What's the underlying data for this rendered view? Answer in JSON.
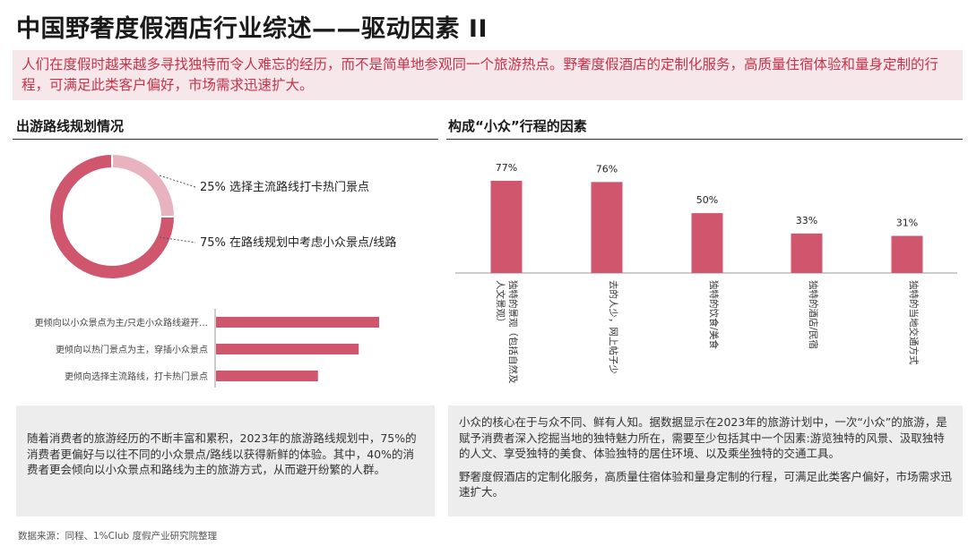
{
  "title": "中国野奢度假酒店行业综述——驱动因素 II",
  "banner": "人们在度假时越来越多寻找独特而令人难忘的经历，而不是简单地参观同一个旅游热点。野奢度假酒店的定制化服务，高质量住宿体验和量身定制的行程，可满足此类客户偏好，市场需求迅速扩大。",
  "left_section": {
    "title": "出游路线规划情况"
  },
  "right_section": {
    "title": "构成“小众”行程的因素"
  },
  "left_note": "随着消费者的旅游经历的不断丰富和累积，2023年的旅游路线规划中，75%的消费者更偏好与以往不同的小众景点/路线以获得新鲜的体验。其中，40%的消费者更会倾向以小众景点和路线为主的旅游方式，从而避开纷繁的人群。",
  "right_note": {
    "p1": "小众的核心在于与众不同、鲜有人知。据数据显示在2023年的旅游计划中，一次“小众”的旅游，是赋予消费者深入挖掘当地的独特魅力所在，需要至少包括其中一个因素:游览独特的风景、汲取独特的人文、享受独特的美食、体验独特的居住环境、以及乘坐独特的交通工具。",
    "p2": "野奢度假酒店的定制化服务，高质量住宿体验和量身定制的行程，可满足此类客户偏好，市场需求迅速扩大。"
  },
  "source": "数据来源：同程、1%Club 度假产业研究院整理",
  "colors": {
    "primary": "#d0566d",
    "light": "#e8b3bf",
    "banner_text": "#c8324a"
  },
  "chart_data": [
    {
      "type": "pie",
      "donut": true,
      "slices": [
        {
          "label": "25% 选择主流路线打卡热门景点",
          "value": 25,
          "color": "#e8b3bf"
        },
        {
          "label": "75% 在路线规划中考虑小众景点/线路",
          "value": 75,
          "color": "#d0566d"
        }
      ]
    },
    {
      "type": "bar",
      "orientation": "horizontal",
      "categories": [
        "更倾向以小众景点为主/只走小众路线避开…",
        "更倾向以热门景点为主，穿插小众景点",
        "更倾向选择主流路线，打卡热门景点"
      ],
      "values": [
        40,
        35,
        25
      ]
    },
    {
      "type": "bar",
      "categories": [
        "独特的景观（包括自然及人文景观）",
        "去的人少，网上帖子少",
        "独特的饮食/美食",
        "独特的酒店/民宿",
        "独特的当地交通方式"
      ],
      "values": [
        77,
        76,
        50,
        33,
        31
      ],
      "data_labels": [
        "77%",
        "76%",
        "50%",
        "33%",
        "31%"
      ]
    }
  ]
}
